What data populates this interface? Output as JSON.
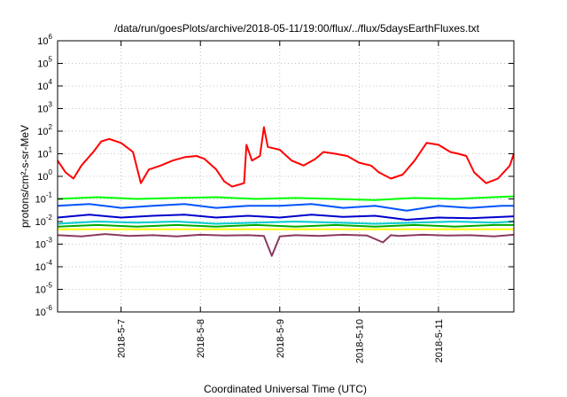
{
  "chart_data": {
    "type": "line",
    "title": "/data/run/goesPlots/archive/2018-05-11/19:00/flux/../flux/5daysEarthFluxes.txt",
    "xlabel": "Coordinated Universal Time (UTC)",
    "ylabel": "protons/cm²-s-sr-MeV",
    "y_scale": "log",
    "ylim": [
      1e-06,
      1000000.0
    ],
    "xlim": [
      0.0,
      5.75
    ],
    "grid": true,
    "y_ticks": [
      {
        "base": "10",
        "exp": "-6",
        "value": 1e-06
      },
      {
        "base": "10",
        "exp": "-5",
        "value": 1e-05
      },
      {
        "base": "10",
        "exp": "-4",
        "value": 0.0001
      },
      {
        "base": "10",
        "exp": "-3",
        "value": 0.001
      },
      {
        "base": "10",
        "exp": "-2",
        "value": 0.01
      },
      {
        "base": "10",
        "exp": "-1",
        "value": 0.1
      },
      {
        "base": "10",
        "exp": "0",
        "value": 1
      },
      {
        "base": "10",
        "exp": "1",
        "value": 10
      },
      {
        "base": "10",
        "exp": "2",
        "value": 100
      },
      {
        "base": "10",
        "exp": "3",
        "value": 1000
      },
      {
        "base": "10",
        "exp": "4",
        "value": 10000
      },
      {
        "base": "10",
        "exp": "5",
        "value": 100000
      },
      {
        "base": "10",
        "exp": "6",
        "value": 1000000
      }
    ],
    "x_ticks": [
      {
        "label": "2018-5-7",
        "value": 0.8
      },
      {
        "label": "2018-5-8",
        "value": 1.8
      },
      {
        "label": "2018-5-9",
        "value": 2.8
      },
      {
        "label": "2018-5-10",
        "value": 3.8
      },
      {
        "label": "2018-5-11",
        "value": 4.8
      }
    ],
    "series": [
      {
        "color": "#ff0000",
        "x": [
          0.0,
          0.1,
          0.2,
          0.3,
          0.45,
          0.55,
          0.65,
          0.8,
          0.95,
          1.05,
          1.15,
          1.3,
          1.45,
          1.6,
          1.75,
          1.85,
          2.0,
          2.1,
          2.2,
          2.35,
          2.38,
          2.45,
          2.55,
          2.6,
          2.65,
          2.8,
          2.95,
          3.1,
          3.25,
          3.35,
          3.5,
          3.65,
          3.8,
          3.95,
          4.05,
          4.2,
          4.35,
          4.5,
          4.65,
          4.8,
          4.95,
          5.05,
          5.15,
          5.25,
          5.4,
          5.55,
          5.7,
          5.75
        ],
        "values": [
          5,
          1.5,
          0.8,
          3,
          12,
          35,
          45,
          30,
          12,
          0.5,
          2,
          3,
          5,
          7,
          8,
          6,
          2,
          0.6,
          0.35,
          0.5,
          25,
          5,
          8,
          150,
          20,
          15,
          5,
          3,
          6,
          12,
          10,
          8,
          4,
          3,
          1.5,
          0.8,
          1.2,
          5,
          30,
          25,
          12,
          10,
          8,
          1.5,
          0.5,
          0.8,
          3,
          10
        ]
      },
      {
        "color": "#00ff00",
        "x": [
          0.0,
          0.5,
          1.0,
          1.5,
          2.0,
          2.5,
          3.0,
          3.5,
          4.0,
          4.5,
          5.0,
          5.5,
          5.75
        ],
        "values": [
          0.1,
          0.12,
          0.1,
          0.11,
          0.12,
          0.1,
          0.11,
          0.1,
          0.09,
          0.11,
          0.1,
          0.12,
          0.13
        ]
      },
      {
        "color": "#0055ff",
        "x": [
          0.0,
          0.4,
          0.8,
          1.2,
          1.6,
          2.0,
          2.4,
          2.8,
          3.2,
          3.6,
          4.0,
          4.4,
          4.8,
          5.2,
          5.6,
          5.75
        ],
        "values": [
          0.05,
          0.06,
          0.04,
          0.05,
          0.06,
          0.04,
          0.05,
          0.05,
          0.06,
          0.04,
          0.05,
          0.03,
          0.05,
          0.04,
          0.05,
          0.05
        ]
      },
      {
        "color": "#0000cc",
        "x": [
          0.0,
          0.4,
          0.8,
          1.2,
          1.6,
          2.0,
          2.4,
          2.8,
          3.2,
          3.6,
          4.0,
          4.4,
          4.8,
          5.2,
          5.6,
          5.75
        ],
        "values": [
          0.015,
          0.02,
          0.015,
          0.018,
          0.02,
          0.015,
          0.018,
          0.015,
          0.02,
          0.016,
          0.018,
          0.012,
          0.015,
          0.014,
          0.016,
          0.017
        ]
      },
      {
        "color": "#00cccc",
        "x": [
          0.0,
          0.5,
          1.0,
          1.5,
          2.0,
          2.5,
          3.0,
          3.5,
          4.0,
          4.5,
          5.0,
          5.5,
          5.75
        ],
        "values": [
          0.008,
          0.01,
          0.009,
          0.01,
          0.008,
          0.009,
          0.01,
          0.009,
          0.008,
          0.009,
          0.01,
          0.009,
          0.01
        ]
      },
      {
        "color": "#00aa00",
        "x": [
          0.0,
          0.5,
          1.0,
          1.5,
          2.0,
          2.5,
          3.0,
          3.5,
          4.0,
          4.5,
          5.0,
          5.5,
          5.75
        ],
        "values": [
          0.006,
          0.007,
          0.006,
          0.007,
          0.006,
          0.007,
          0.006,
          0.007,
          0.006,
          0.007,
          0.006,
          0.007,
          0.007
        ]
      },
      {
        "color": "#ffff00",
        "x": [
          0.0,
          0.5,
          1.0,
          1.5,
          2.0,
          2.5,
          3.0,
          3.5,
          4.0,
          4.5,
          5.0,
          5.5,
          5.75
        ],
        "values": [
          0.0045,
          0.0045,
          0.0045,
          0.0045,
          0.0045,
          0.0045,
          0.0045,
          0.0045,
          0.0045,
          0.0045,
          0.0045,
          0.0045,
          0.0045
        ]
      },
      {
        "color": "#8b3a62",
        "x": [
          0.0,
          0.3,
          0.6,
          0.9,
          1.2,
          1.5,
          1.8,
          2.1,
          2.4,
          2.6,
          2.7,
          2.8,
          3.0,
          3.3,
          3.6,
          3.9,
          4.1,
          4.2,
          4.3,
          4.6,
          4.9,
          5.2,
          5.5,
          5.75
        ],
        "values": [
          0.0025,
          0.0022,
          0.0028,
          0.0023,
          0.0025,
          0.0022,
          0.0026,
          0.0024,
          0.0025,
          0.0023,
          0.0003,
          0.0022,
          0.0025,
          0.0023,
          0.0026,
          0.0024,
          0.0012,
          0.0025,
          0.0023,
          0.0026,
          0.0024,
          0.0025,
          0.0022,
          0.0026
        ]
      }
    ]
  }
}
